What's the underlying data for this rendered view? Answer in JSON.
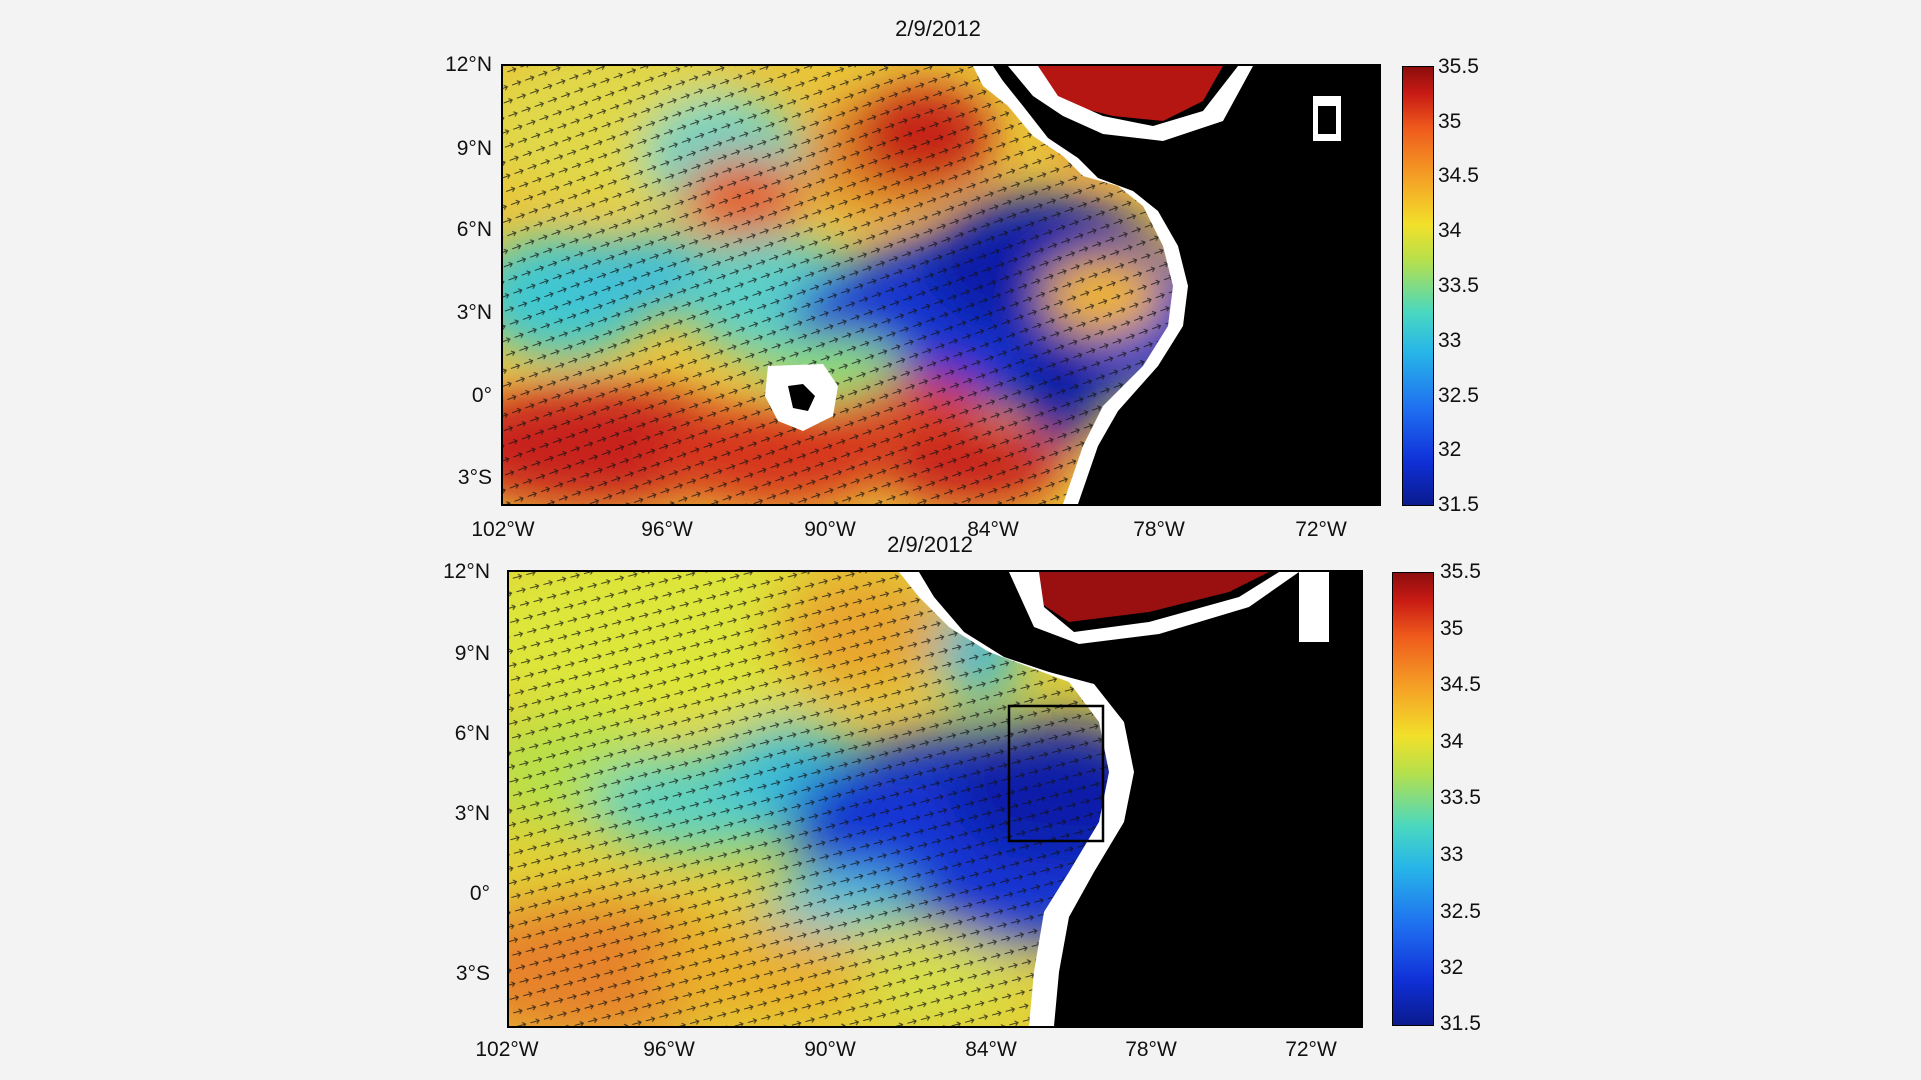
{
  "figure": {
    "panels": [
      {
        "title": "2/9/2012",
        "lat_labels": [
          "12°N",
          "9°N",
          "6°N",
          "3°N",
          "0°",
          "3°S"
        ],
        "lon_labels": [
          "102°W",
          "96°W",
          "90°W",
          "84°W",
          "78°W",
          "72°W"
        ],
        "colorbar_labels": [
          "35.5",
          "35",
          "34.5",
          "34",
          "33.5",
          "33",
          "32.5",
          "32",
          "31.5"
        ],
        "has_box": false
      },
      {
        "title": "2/9/2012",
        "lat_labels": [
          "12°N",
          "9°N",
          "6°N",
          "3°N",
          "0°",
          "3°S"
        ],
        "lon_labels": [
          "102°W",
          "96°W",
          "90°W",
          "84°W",
          "78°W",
          "72°W"
        ],
        "colorbar_labels": [
          "35.5",
          "35",
          "34.5",
          "34",
          "33.5",
          "33",
          "32.5",
          "32",
          "31.5"
        ],
        "has_box": true
      }
    ],
    "colorbar_range": [
      31.5,
      35.5
    ],
    "colors": {
      "land": "#000000",
      "coast_mask": "#ffffff",
      "low_salinity": "#0a1d9a",
      "high_salinity": "#a80f0f"
    }
  }
}
